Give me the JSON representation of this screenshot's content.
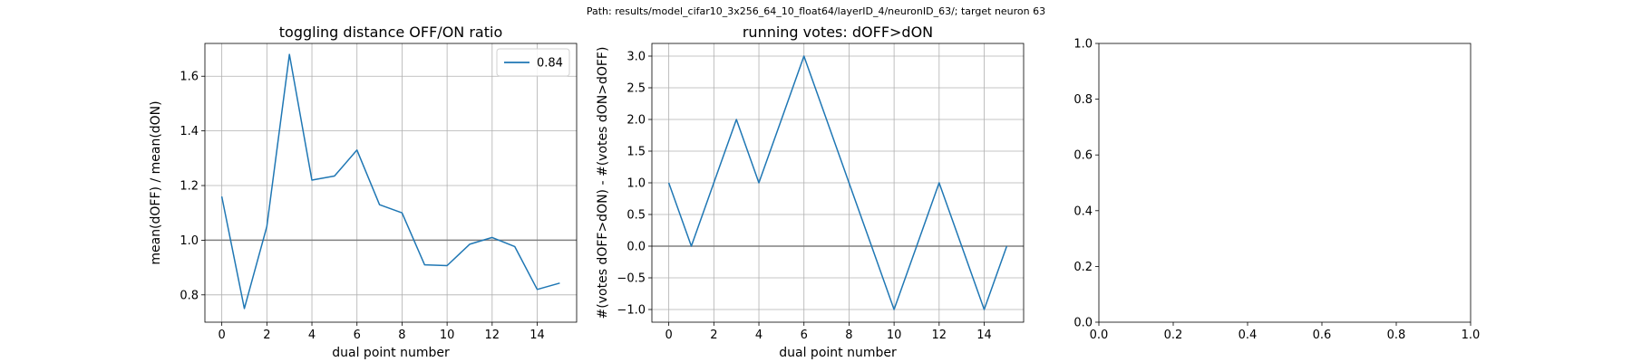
{
  "suptitle": "Path: results/model_cifar10_3x256_64_10_float64/layerID_4/neuronID_63/; target neuron 63",
  "colors": {
    "series": "#1f77b4",
    "refline": "#808080",
    "grid": "#b0b0b0"
  },
  "chart_data": [
    {
      "type": "line",
      "title": "toggling distance OFF/ON ratio",
      "xlabel": "dual point number",
      "ylabel": "mean(dOFF) / mean(dON)",
      "xlim": [
        -0.75,
        15.75
      ],
      "ylim": [
        0.7,
        1.72
      ],
      "xticks": [
        0,
        2,
        4,
        6,
        8,
        10,
        12,
        14
      ],
      "yticks": [
        0.8,
        1.0,
        1.2,
        1.4,
        1.6
      ],
      "ytick_labels": [
        "0.8",
        "1.0",
        "1.2",
        "1.4",
        "1.6"
      ],
      "grid": true,
      "hline": 1.0,
      "legend": {
        "position": "top-right",
        "entries": [
          "0.84"
        ]
      },
      "series": [
        {
          "x": [
            0,
            1,
            2,
            3,
            4,
            5,
            6,
            7,
            8,
            9,
            10,
            11,
            12,
            13,
            14,
            15
          ],
          "y": [
            1.16,
            0.75,
            1.05,
            1.68,
            1.22,
            1.235,
            1.33,
            1.13,
            1.1,
            0.91,
            0.907,
            0.985,
            1.01,
            0.977,
            0.82,
            0.843
          ]
        }
      ]
    },
    {
      "type": "line",
      "title": "running votes: dOFF>dON",
      "xlabel": "dual point number",
      "ylabel": "#(votes dOFF>dON) - #(votes dON>dOFF)",
      "xlim": [
        -0.75,
        15.75
      ],
      "ylim": [
        -1.2,
        3.2
      ],
      "xticks": [
        0,
        2,
        4,
        6,
        8,
        10,
        12,
        14
      ],
      "yticks": [
        -1.0,
        -0.5,
        0.0,
        0.5,
        1.0,
        1.5,
        2.0,
        2.5,
        3.0
      ],
      "ytick_labels": [
        "−1.0",
        "−0.5",
        "0.0",
        "0.5",
        "1.0",
        "1.5",
        "2.0",
        "2.5",
        "3.0"
      ],
      "grid": true,
      "hline": 0.0,
      "series": [
        {
          "x": [
            0,
            1,
            2,
            3,
            4,
            5,
            6,
            7,
            8,
            9,
            10,
            11,
            12,
            13,
            14,
            15
          ],
          "y": [
            1,
            0,
            1,
            2,
            1,
            2,
            3,
            2,
            1,
            0,
            -1,
            0,
            1,
            0,
            -1,
            0
          ]
        }
      ]
    },
    {
      "type": "line",
      "title": "",
      "xlabel": "",
      "ylabel": "",
      "xlim": [
        0,
        1
      ],
      "ylim": [
        0,
        1
      ],
      "xticks": [
        0,
        0.2,
        0.4,
        0.6,
        0.8,
        1.0
      ],
      "xtick_labels": [
        "0.0",
        "0.2",
        "0.4",
        "0.6",
        "0.8",
        "1.0"
      ],
      "yticks": [
        0,
        0.2,
        0.4,
        0.6,
        0.8,
        1.0
      ],
      "ytick_labels": [
        "0.0",
        "0.2",
        "0.4",
        "0.6",
        "0.8",
        "1.0"
      ],
      "grid": false,
      "series": []
    }
  ]
}
